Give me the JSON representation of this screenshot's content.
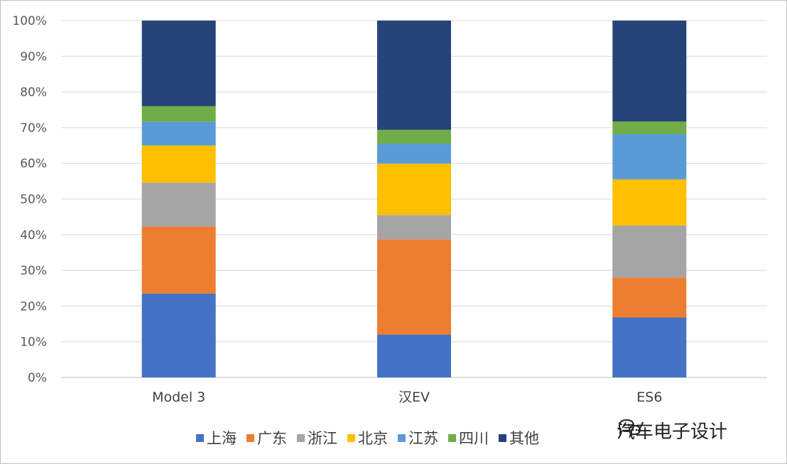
{
  "chart_data": {
    "type": "bar",
    "stacked": true,
    "categories": [
      "Model 3",
      "汉EV",
      "ES6"
    ],
    "y_ticks": [
      "0%",
      "10%",
      "20%",
      "30%",
      "40%",
      "50%",
      "60%",
      "70%",
      "80%",
      "90%",
      "100%"
    ],
    "ylim": [
      0,
      100
    ],
    "grid": true,
    "legend_position": "bottom",
    "series": [
      {
        "name": "上海",
        "color": "#4472C4",
        "values": [
          23.5,
          12,
          16.8
        ]
      },
      {
        "name": "广东",
        "color": "#ED7D31",
        "values": [
          18.8,
          26.7,
          11.2
        ]
      },
      {
        "name": "浙江",
        "color": "#A5A5A5",
        "values": [
          12.3,
          6.8,
          14.6
        ]
      },
      {
        "name": "北京",
        "color": "#FFC000",
        "values": [
          10.4,
          14.4,
          12.9
        ]
      },
      {
        "name": "江苏",
        "color": "#5B9BD5",
        "values": [
          6.7,
          5.6,
          12.7
        ]
      },
      {
        "name": "四川",
        "color": "#70AD47",
        "values": [
          4.3,
          3.9,
          3.5
        ]
      },
      {
        "name": "其他",
        "color": "#264478",
        "values": [
          24,
          30.6,
          28.3
        ]
      }
    ]
  },
  "watermark": {
    "text": "汽车电子设计",
    "icon": "wechat-bubble-icon"
  }
}
